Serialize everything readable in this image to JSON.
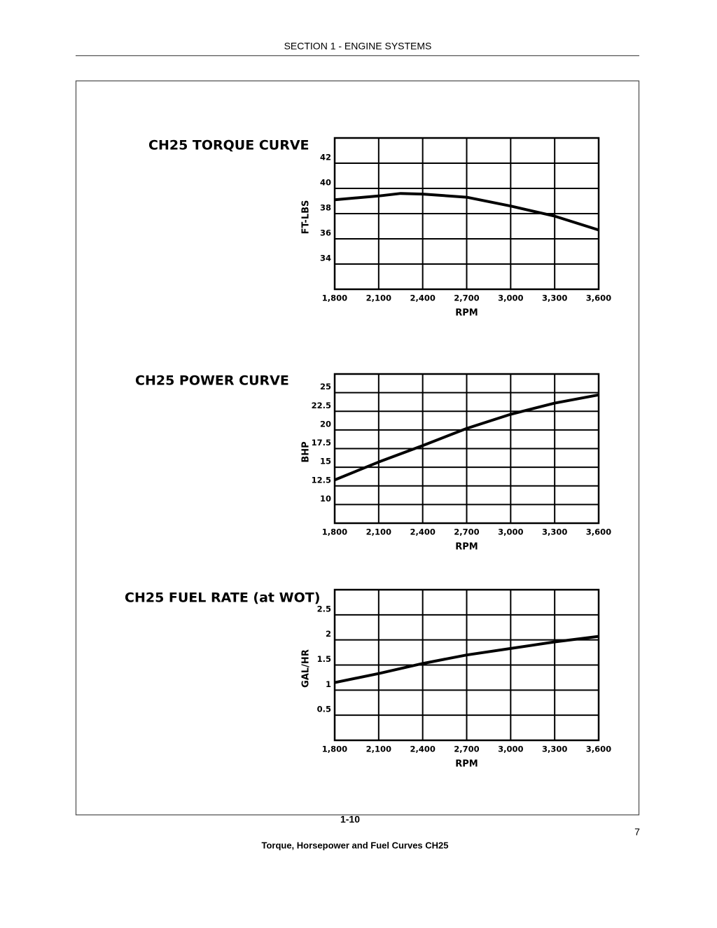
{
  "header": {
    "title": "SECTION 1 - ENGINE SYSTEMS"
  },
  "figure": {
    "number": "7",
    "caption": "Torque, Horsepower and Fuel Curves CH25"
  },
  "footer": {
    "page": "1-10"
  },
  "chart_data": [
    {
      "type": "line",
      "title": "CH25 TORQUE CURVE",
      "x_label": "RPM",
      "y_label": "FT-LBS",
      "color": "#000000",
      "grid": true,
      "x": [
        1800,
        2100,
        2250,
        2400,
        2700,
        3000,
        3300,
        3600
      ],
      "values": [
        39.1,
        39.4,
        39.6,
        39.55,
        39.3,
        38.6,
        37.8,
        36.7
      ],
      "xlim": [
        1800,
        3600
      ],
      "xticks": [
        {
          "value": 1800,
          "label": "1,800"
        },
        {
          "value": 2100,
          "label": "2,100"
        },
        {
          "value": 2400,
          "label": "2,400"
        },
        {
          "value": 2700,
          "label": "2,700"
        },
        {
          "value": 3000,
          "label": "3,000"
        },
        {
          "value": 3300,
          "label": "3,300"
        },
        {
          "value": 3600,
          "label": "3,600"
        }
      ],
      "ylim": [
        32,
        44
      ],
      "yticks": [
        34,
        36,
        38,
        40,
        42
      ]
    },
    {
      "type": "line",
      "title": "CH25 POWER CURVE",
      "x_label": "RPM",
      "y_label": "BHP",
      "color": "#000000",
      "grid": true,
      "x": [
        1800,
        2100,
        2400,
        2700,
        3000,
        3300,
        3600
      ],
      "values": [
        13.3,
        15.7,
        17.9,
        20.2,
        22.1,
        23.6,
        24.7
      ],
      "xlim": [
        1800,
        3600
      ],
      "xticks": [
        {
          "value": 1800,
          "label": "1,800"
        },
        {
          "value": 2100,
          "label": "2,100"
        },
        {
          "value": 2400,
          "label": "2,400"
        },
        {
          "value": 2700,
          "label": "2,700"
        },
        {
          "value": 3000,
          "label": "3,000"
        },
        {
          "value": 3300,
          "label": "3,300"
        },
        {
          "value": 3600,
          "label": "3,600"
        }
      ],
      "ylim": [
        7.5,
        27.5
      ],
      "yticks": [
        10,
        12.5,
        15,
        17.5,
        20,
        22.5,
        25
      ]
    },
    {
      "type": "line",
      "title": "CH25 FUEL RATE (at WOT)",
      "x_label": "RPM",
      "y_label": "GAL/HR",
      "color": "#000000",
      "grid": true,
      "x": [
        1800,
        2100,
        2400,
        2700,
        3000,
        3300,
        3600
      ],
      "values": [
        1.15,
        1.33,
        1.53,
        1.7,
        1.83,
        1.96,
        2.07
      ],
      "xlim": [
        1800,
        3600
      ],
      "xticks": [
        {
          "value": 1800,
          "label": "1,800"
        },
        {
          "value": 2100,
          "label": "2,100"
        },
        {
          "value": 2400,
          "label": "2,400"
        },
        {
          "value": 2700,
          "label": "2,700"
        },
        {
          "value": 3000,
          "label": "3,000"
        },
        {
          "value": 3300,
          "label": "3,300"
        },
        {
          "value": 3600,
          "label": "3,600"
        }
      ],
      "ylim": [
        0,
        3
      ],
      "yticks": [
        0.5,
        1,
        1.5,
        2,
        2.5
      ]
    }
  ]
}
